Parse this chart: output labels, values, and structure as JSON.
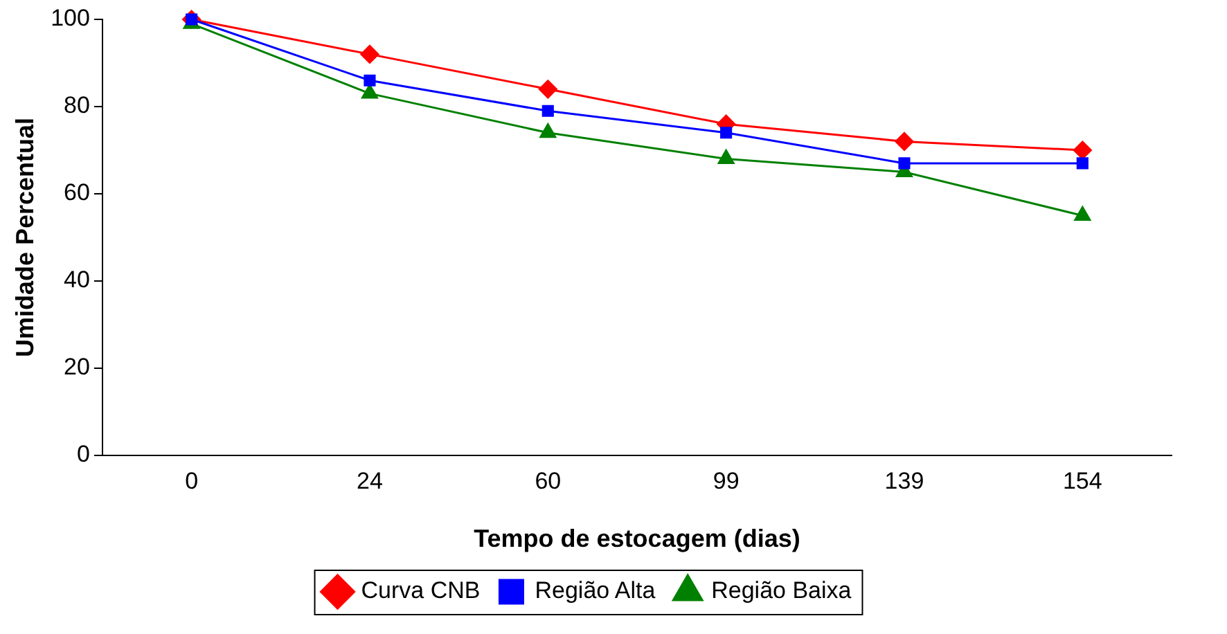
{
  "chart_data": {
    "type": "line",
    "xlabel": "Tempo de estocagem (dias)",
    "ylabel": "Umidade Percentual",
    "categories": [
      "0",
      "24",
      "60",
      "99",
      "139",
      "154"
    ],
    "series": [
      {
        "name": "Curva CNB",
        "color": "#ff0000",
        "marker": "diamond",
        "values": [
          100,
          92,
          84,
          76,
          72,
          70
        ]
      },
      {
        "name": "Região Alta",
        "color": "#0000ff",
        "marker": "square",
        "values": [
          100,
          86,
          79,
          74,
          67,
          67
        ]
      },
      {
        "name": "Região Baixa",
        "color": "#008000",
        "marker": "triangle",
        "values": [
          99,
          83,
          74,
          68,
          65,
          55
        ]
      }
    ],
    "ylim": [
      0,
      100
    ],
    "yticks": [
      0,
      20,
      40,
      60,
      80,
      100
    ],
    "grid": false,
    "legend": "bottom"
  }
}
